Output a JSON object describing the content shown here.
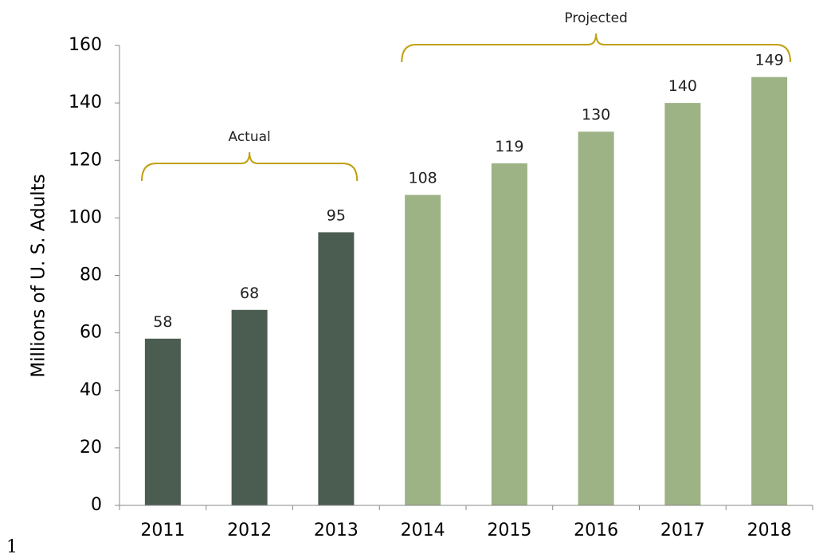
{
  "chart_data": {
    "type": "bar",
    "title": "",
    "xlabel": "",
    "ylabel": "Millions of U. S. Adults",
    "ylim": [
      0,
      160
    ],
    "yticks": [
      0,
      20,
      40,
      60,
      80,
      100,
      120,
      140,
      160
    ],
    "grid": false,
    "categories": [
      "2011",
      "2012",
      "2013",
      "2014",
      "2015",
      "2016",
      "2017",
      "2018"
    ],
    "values": [
      58,
      68,
      95,
      108,
      119,
      130,
      140,
      149
    ],
    "data_labels": [
      "58",
      "68",
      "95",
      "108",
      "119",
      "130",
      "140",
      "149"
    ],
    "groups": [
      {
        "label": "Actual",
        "categories": [
          "2011",
          "2012",
          "2013"
        ],
        "color": "#4a5d50"
      },
      {
        "label": "Projected",
        "categories": [
          "2014",
          "2015",
          "2016",
          "2017",
          "2018"
        ],
        "color": "#9db285"
      }
    ],
    "bracket_color": "#c0a010"
  },
  "footnote": "1"
}
